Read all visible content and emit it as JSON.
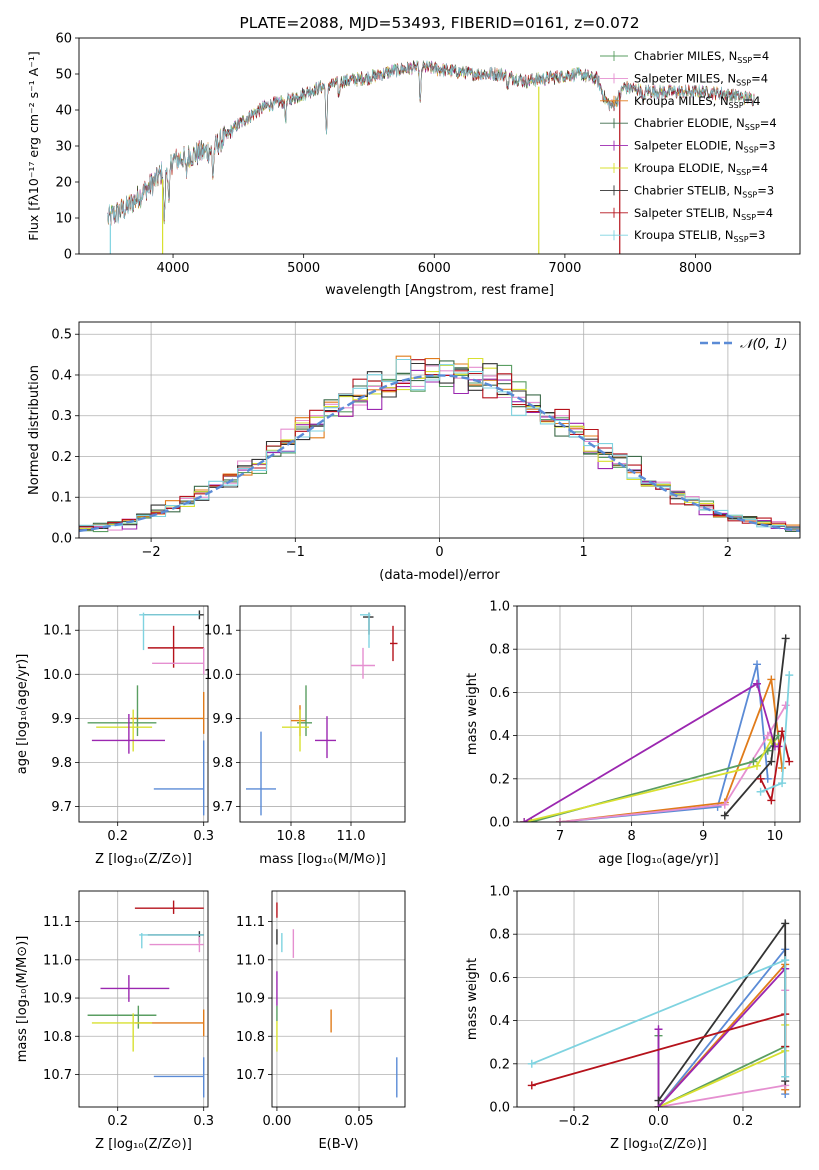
{
  "chart_data": [
    {
      "id": "spectrum",
      "type": "line",
      "title": "PLATE=2088, MJD=53493, FIBERID=0161, z=0.072",
      "xlabel": "wavelength [Angstrom, rest frame]",
      "ylabel": "Flux [fλ10⁻¹⁷ erg cm⁻² s⁻¹ A⁻¹]",
      "xlim": [
        3280,
        8800
      ],
      "ylim": [
        0,
        60
      ],
      "xticks": [
        "4000",
        "5000",
        "6000",
        "7000",
        "8000"
      ],
      "yticks": [
        "0",
        "10",
        "20",
        "30",
        "40",
        "50",
        "60"
      ],
      "legend": [
        {
          "name": "Chabrier MILES, N",
          "sub": "SSP",
          "tail": "=4",
          "color": "#5a9e62"
        },
        {
          "name": "Salpeter MILES, N",
          "sub": "SSP",
          "tail": "=4",
          "color": "#e58fd0"
        },
        {
          "name": "Kroupa MILES, N",
          "sub": "SSP",
          "tail": "=4",
          "color": "#e07b1a"
        },
        {
          "name": "Chabrier ELODIE, N",
          "sub": "SSP",
          "tail": "=4",
          "color": "#3d6b4a"
        },
        {
          "name": "Salpeter ELODIE, N",
          "sub": "SSP",
          "tail": "=3",
          "color": "#9b27b0"
        },
        {
          "name": "Kroupa ELODIE, N",
          "sub": "SSP",
          "tail": "=4",
          "color": "#d8e030"
        },
        {
          "name": "Chabrier STELIB, N",
          "sub": "SSP",
          "tail": "=3",
          "color": "#333333"
        },
        {
          "name": "Salpeter STELIB, N",
          "sub": "SSP",
          "tail": "=4",
          "color": "#b5121b"
        },
        {
          "name": "Kroupa STELIB, N",
          "sub": "SSP",
          "tail": "=3",
          "color": "#7fd3e0"
        }
      ],
      "legend_loc": "right",
      "spectrum_anchors": [
        [
          3500,
          10
        ],
        [
          3650,
          13
        ],
        [
          3800,
          18
        ],
        [
          3900,
          22
        ],
        [
          4000,
          26
        ],
        [
          4200,
          28
        ],
        [
          4300,
          29
        ],
        [
          4500,
          36
        ],
        [
          4700,
          41
        ],
        [
          4900,
          43
        ],
        [
          5100,
          46
        ],
        [
          5300,
          48
        ],
        [
          5500,
          49
        ],
        [
          5700,
          51
        ],
        [
          5900,
          52
        ],
        [
          6100,
          51
        ],
        [
          6300,
          50
        ],
        [
          6500,
          50
        ],
        [
          6700,
          48
        ],
        [
          6900,
          49
        ],
        [
          7100,
          50
        ],
        [
          7300,
          48
        ],
        [
          7500,
          46
        ],
        [
          7700,
          45
        ],
        [
          7900,
          45
        ],
        [
          8100,
          45
        ],
        [
          8300,
          44
        ],
        [
          8450,
          43
        ]
      ],
      "absorption_lines": [
        [
          3934,
          14
        ],
        [
          3969,
          12
        ],
        [
          4101,
          5
        ],
        [
          4305,
          7
        ],
        [
          4861,
          5
        ],
        [
          5175,
          14
        ],
        [
          5270,
          4
        ],
        [
          5893,
          10
        ],
        [
          6563,
          3
        ],
        [
          7600,
          4
        ]
      ],
      "spikes": [
        [
          3920,
          0,
          "#d8e030"
        ],
        [
          6800,
          0,
          "#d8e030"
        ],
        [
          7420,
          0,
          "#b5121b"
        ],
        [
          3520,
          0,
          "#7fd3e0"
        ]
      ],
      "bump_region": [
        7250,
        7450
      ]
    },
    {
      "id": "residuals",
      "type": "histogram",
      "xlabel": "(data-model)/error",
      "ylabel": "Normed distribution",
      "xlim": [
        -2.5,
        2.5
      ],
      "ylim": [
        0,
        0.53
      ],
      "xticks": [
        "−2",
        "−1",
        "0",
        "1",
        "2"
      ],
      "yticks": [
        "0.0",
        "0.1",
        "0.2",
        "0.3",
        "0.4",
        "0.5"
      ],
      "legend": "𝒩(0, 1)",
      "legend_loc": "upper right",
      "bin_width": 0.1,
      "gaussian": {
        "mu": 0,
        "sigma": 1,
        "color": "#5b8bd6"
      }
    },
    {
      "id": "age-vs-Z",
      "type": "errorbar",
      "xlabel": "Z [log₁₀(Z/Z⊙)]",
      "ylabel": "age  [log₁₀(age/yr)]",
      "xlim": [
        0.155,
        0.305
      ],
      "ylim": [
        9.665,
        10.155
      ],
      "xticks": [
        "0.2",
        "0.3"
      ],
      "yticks": [
        "9.7",
        "9.8",
        "9.9",
        "10.0",
        "10.1"
      ],
      "points": [
        {
          "x": 0.265,
          "xl": 0.235,
          "xh": 0.3,
          "y": 10.06,
          "yl": 10.015,
          "yh": 10.11,
          "color": "#b5121b"
        },
        {
          "x": 0.295,
          "xl": 0.23,
          "xh": 0.3,
          "y": 10.135,
          "yl": 10.125,
          "yh": 10.145,
          "color": "#333333"
        },
        {
          "x": 0.23,
          "xl": 0.225,
          "xh": 0.295,
          "y": 10.135,
          "yl": 10.055,
          "yh": 10.14,
          "color": "#7fd3e0"
        },
        {
          "x": 0.3,
          "xl": 0.24,
          "xh": 0.3,
          "y": 10.025,
          "yl": 10.0,
          "yh": 10.06,
          "color": "#e58fd0"
        },
        {
          "x": 0.3,
          "xl": 0.215,
          "xh": 0.3,
          "y": 9.9,
          "yl": 9.865,
          "yh": 9.96,
          "color": "#e07b1a"
        },
        {
          "x": 0.223,
          "xl": 0.165,
          "xh": 0.245,
          "y": 9.89,
          "yl": 9.86,
          "yh": 9.975,
          "color": "#5a9e62"
        },
        {
          "x": 0.218,
          "xl": 0.175,
          "xh": 0.24,
          "y": 9.88,
          "yl": 9.825,
          "yh": 9.92,
          "color": "#d8e030"
        },
        {
          "x": 0.213,
          "xl": 0.17,
          "xh": 0.255,
          "y": 9.85,
          "yl": 9.82,
          "yh": 9.91,
          "color": "#9b27b0"
        },
        {
          "x": 0.3,
          "xl": 0.242,
          "xh": 0.3,
          "y": 9.74,
          "yl": 9.68,
          "yh": 9.85,
          "color": "#5b8bd6"
        }
      ]
    },
    {
      "id": "age-vs-mass",
      "type": "errorbar",
      "xlabel": "mass [log₁₀(M/M⊙)]",
      "ylabel": "",
      "xlim": [
        10.63,
        11.18
      ],
      "ylim": [
        9.665,
        10.155
      ],
      "xticks": [
        "10.8",
        "11.0"
      ],
      "yticks": [
        "9.7",
        "9.8",
        "9.9",
        "10.0",
        "10.1"
      ],
      "points": [
        {
          "x": 11.14,
          "xl": 11.13,
          "xh": 11.155,
          "y": 10.07,
          "yl": 10.03,
          "yh": 10.11,
          "color": "#b5121b"
        },
        {
          "x": 11.06,
          "xl": 11.04,
          "xh": 11.075,
          "y": 10.13,
          "yl": 10.09,
          "yh": 10.14,
          "color": "#333333"
        },
        {
          "x": 11.06,
          "xl": 11.03,
          "xh": 11.065,
          "y": 10.135,
          "yl": 10.06,
          "yh": 10.14,
          "color": "#7fd3e0"
        },
        {
          "x": 11.04,
          "xl": 11.0,
          "xh": 11.08,
          "y": 10.02,
          "yl": 9.99,
          "yh": 10.06,
          "color": "#e58fd0"
        },
        {
          "x": 10.83,
          "xl": 10.8,
          "xh": 10.85,
          "y": 9.895,
          "yl": 9.86,
          "yh": 9.93,
          "color": "#e07b1a"
        },
        {
          "x": 10.85,
          "xl": 10.82,
          "xh": 10.87,
          "y": 9.89,
          "yl": 9.86,
          "yh": 9.975,
          "color": "#5a9e62"
        },
        {
          "x": 10.83,
          "xl": 10.77,
          "xh": 10.86,
          "y": 9.88,
          "yl": 9.825,
          "yh": 9.92,
          "color": "#d8e030"
        },
        {
          "x": 10.92,
          "xl": 10.88,
          "xh": 10.95,
          "y": 9.85,
          "yl": 9.81,
          "yh": 9.905,
          "color": "#9b27b0"
        },
        {
          "x": 10.7,
          "xl": 10.65,
          "xh": 10.75,
          "y": 9.74,
          "yl": 9.68,
          "yh": 9.87,
          "color": "#5b8bd6"
        }
      ]
    },
    {
      "id": "mw-vs-age",
      "type": "line",
      "xlabel": "age  [log₁₀(age/yr)]",
      "ylabel": "mass weight",
      "xlim": [
        6.4,
        10.35
      ],
      "ylim": [
        0,
        1.0
      ],
      "xticks": [
        "7",
        "8",
        "9",
        "10"
      ],
      "yticks": [
        "0.0",
        "0.2",
        "0.4",
        "0.6",
        "0.8",
        "1.0"
      ],
      "series": [
        {
          "color": "#5b8bd6",
          "points": [
            [
              7.0,
              0.0
            ],
            [
              9.2,
              0.07
            ],
            [
              9.75,
              0.73
            ],
            [
              9.9,
              0.2
            ]
          ]
        },
        {
          "color": "#e07b1a",
          "points": [
            [
              7.0,
              0.0
            ],
            [
              9.3,
              0.09
            ],
            [
              9.95,
              0.66
            ],
            [
              10.1,
              0.25
            ]
          ]
        },
        {
          "color": "#e58fd0",
          "points": [
            [
              7.0,
              0.0
            ],
            [
              9.3,
              0.08
            ],
            [
              9.9,
              0.4
            ],
            [
              10.15,
              0.54
            ]
          ]
        },
        {
          "color": "#5a9e62",
          "points": [
            [
              6.6,
              0.0
            ],
            [
              9.7,
              0.28
            ],
            [
              9.9,
              0.33
            ],
            [
              10.05,
              0.4
            ]
          ]
        },
        {
          "color": "#d8e030",
          "points": [
            [
              6.5,
              0.0
            ],
            [
              9.75,
              0.26
            ],
            [
              9.95,
              0.38
            ],
            [
              10.0,
              0.36
            ]
          ]
        },
        {
          "color": "#9b27b0",
          "points": [
            [
              6.5,
              0.0
            ],
            [
              9.75,
              0.64
            ],
            [
              10.0,
              0.35
            ],
            [
              10.05,
              0.35
            ]
          ]
        },
        {
          "color": "#333333",
          "points": [
            [
              9.3,
              0.03
            ],
            [
              9.95,
              0.28
            ],
            [
              10.15,
              0.85
            ]
          ]
        },
        {
          "color": "#b5121b",
          "points": [
            [
              9.8,
              0.2
            ],
            [
              9.95,
              0.1
            ],
            [
              10.1,
              0.42
            ],
            [
              10.2,
              0.28
            ]
          ]
        },
        {
          "color": "#7fd3e0",
          "points": [
            [
              9.8,
              0.14
            ],
            [
              10.1,
              0.18
            ],
            [
              10.2,
              0.68
            ]
          ]
        }
      ]
    },
    {
      "id": "mass-vs-Z",
      "type": "errorbar",
      "xlabel": "Z [log₁₀(Z/Z⊙)]",
      "ylabel": "mass [log₁₀(M/M⊙)]",
      "xlim": [
        0.155,
        0.305
      ],
      "ylim": [
        10.615,
        11.18
      ],
      "xticks": [
        "0.2",
        "0.3"
      ],
      "yticks": [
        "10.7",
        "10.8",
        "10.9",
        "11.0",
        "11.1"
      ],
      "points": [
        {
          "x": 0.265,
          "xl": 0.22,
          "xh": 0.3,
          "y": 11.135,
          "yl": 11.12,
          "yh": 11.155,
          "color": "#b5121b"
        },
        {
          "x": 0.295,
          "xl": 0.235,
          "xh": 0.3,
          "y": 11.065,
          "yl": 11.045,
          "yh": 11.075,
          "color": "#333333"
        },
        {
          "x": 0.228,
          "xl": 0.225,
          "xh": 0.3,
          "y": 11.065,
          "yl": 11.03,
          "yh": 11.07,
          "color": "#7fd3e0"
        },
        {
          "x": 0.295,
          "xl": 0.237,
          "xh": 0.3,
          "y": 11.04,
          "yl": 11.02,
          "yh": 11.06,
          "color": "#e58fd0"
        },
        {
          "x": 0.3,
          "xl": 0.22,
          "xh": 0.3,
          "y": 10.835,
          "yl": 10.8,
          "yh": 10.87,
          "color": "#e07b1a"
        },
        {
          "x": 0.224,
          "xl": 0.165,
          "xh": 0.245,
          "y": 10.855,
          "yl": 10.82,
          "yh": 10.88,
          "color": "#5a9e62"
        },
        {
          "x": 0.218,
          "xl": 0.17,
          "xh": 0.24,
          "y": 10.835,
          "yl": 10.76,
          "yh": 10.86,
          "color": "#d8e030"
        },
        {
          "x": 0.213,
          "xl": 0.18,
          "xh": 0.26,
          "y": 10.925,
          "yl": 10.89,
          "yh": 10.96,
          "color": "#9b27b0"
        },
        {
          "x": 0.3,
          "xl": 0.242,
          "xh": 0.3,
          "y": 10.695,
          "yl": 10.64,
          "yh": 10.745,
          "color": "#5b8bd6"
        }
      ]
    },
    {
      "id": "mass-vs-EBV",
      "type": "errorbar",
      "xlabel": "E(B-V)",
      "ylabel": "",
      "xlim": [
        -0.003,
        0.078
      ],
      "ylim": [
        10.615,
        11.18
      ],
      "xticks": [
        "0.00",
        "0.05"
      ],
      "yticks": [
        "10.7",
        "10.8",
        "10.9",
        "11.0",
        "11.1"
      ],
      "points": [
        {
          "x": 0.0,
          "y": 11.13,
          "yl": 11.11,
          "yh": 11.15,
          "color": "#b5121b"
        },
        {
          "x": 0.0,
          "y": 11.065,
          "yl": 11.04,
          "yh": 11.08,
          "color": "#333333"
        },
        {
          "x": 0.003,
          "y": 11.045,
          "yl": 11.02,
          "yh": 11.07,
          "color": "#7fd3e0"
        },
        {
          "x": 0.01,
          "y": 11.045,
          "yl": 11.005,
          "yh": 11.08,
          "color": "#e58fd0"
        },
        {
          "x": 0.033,
          "y": 10.84,
          "yl": 10.81,
          "yh": 10.87,
          "color": "#e07b1a"
        },
        {
          "x": 0.0,
          "y": 10.86,
          "yl": 10.84,
          "yh": 10.88,
          "color": "#5a9e62"
        },
        {
          "x": 0.0,
          "y": 10.8,
          "yl": 10.76,
          "yh": 10.84,
          "color": "#d8e030"
        },
        {
          "x": 0.0,
          "y": 10.93,
          "yl": 10.88,
          "yh": 10.97,
          "color": "#9b27b0"
        },
        {
          "x": 0.073,
          "y": 10.695,
          "yl": 10.64,
          "yh": 10.745,
          "color": "#5b8bd6"
        }
      ]
    },
    {
      "id": "mw-vs-Z",
      "type": "line",
      "xlabel": "Z [log₁₀(Z/Z⊙)]",
      "ylabel": "mass weight",
      "xlim": [
        -0.335,
        0.335
      ],
      "ylim": [
        0,
        1.0
      ],
      "xticks": [
        "−0.2",
        "0.0",
        "0.2"
      ],
      "yticks": [
        "0.0",
        "0.2",
        "0.4",
        "0.6",
        "0.8",
        "1.0"
      ],
      "series": [
        {
          "color": "#5b8bd6",
          "points": [
            [
              0.0,
              0.0
            ],
            [
              0.3,
              0.73
            ],
            [
              0.3,
              0.06
            ]
          ]
        },
        {
          "color": "#e07b1a",
          "points": [
            [
              0.0,
              0.0
            ],
            [
              0.3,
              0.66
            ],
            [
              0.3,
              0.08
            ]
          ]
        },
        {
          "color": "#e58fd0",
          "points": [
            [
              0.0,
              0.0
            ],
            [
              0.3,
              0.1
            ],
            [
              0.3,
              0.54
            ]
          ]
        },
        {
          "color": "#5a9e62",
          "points": [
            [
              0.0,
              0.33
            ],
            [
              0.0,
              0.0
            ],
            [
              0.3,
              0.28
            ]
          ]
        },
        {
          "color": "#d8e030",
          "points": [
            [
              0.0,
              0.0
            ],
            [
              0.3,
              0.26
            ],
            [
              0.3,
              0.38
            ]
          ]
        },
        {
          "color": "#9b27b0",
          "points": [
            [
              0.0,
              0.36
            ],
            [
              0.0,
              0.0
            ],
            [
              0.3,
              0.64
            ]
          ]
        },
        {
          "color": "#333333",
          "points": [
            [
              0.0,
              0.03
            ],
            [
              0.3,
              0.85
            ],
            [
              0.3,
              0.12
            ]
          ]
        },
        {
          "color": "#b5121b",
          "points": [
            [
              -0.3,
              0.1
            ],
            [
              0.3,
              0.43
            ],
            [
              0.3,
              0.28
            ]
          ]
        },
        {
          "color": "#7fd3e0",
          "points": [
            [
              -0.3,
              0.2
            ],
            [
              0.3,
              0.68
            ],
            [
              0.3,
              0.14
            ]
          ]
        }
      ]
    }
  ]
}
